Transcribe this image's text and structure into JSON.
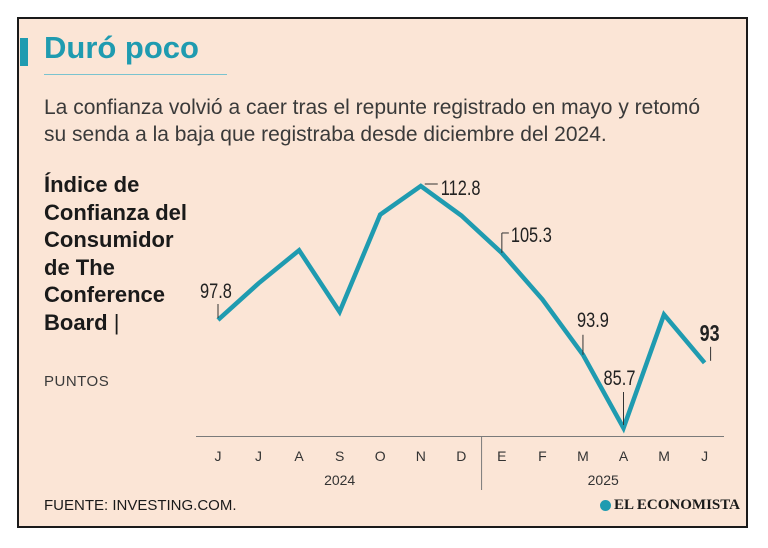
{
  "title": "Duró poco",
  "subtitle": "La confianza volvió a caer tras el repunte registrado en mayo y retomó su senda a la baja que registraba desde diciembre del 2024.",
  "index_title": "Índice de Confianza del Consumidor de The Conference Board",
  "index_separator": "|",
  "unit": "PUNTOS",
  "source": "FUENTE: INVESTING.COM.",
  "brand": "EL ECONOMISTA",
  "colors": {
    "accent": "#1f9bb0",
    "background": "#fbe5d6",
    "text": "#1a1a1a"
  },
  "chart_data": {
    "type": "line",
    "categories": [
      "J",
      "J",
      "A",
      "S",
      "O",
      "N",
      "D",
      "E",
      "F",
      "M",
      "A",
      "M",
      "J"
    ],
    "year_groups": [
      {
        "label": "2024",
        "start": 0,
        "end": 6
      },
      {
        "label": "2025",
        "start": 7,
        "end": 12
      }
    ],
    "values": [
      97.8,
      101.9,
      105.6,
      98.7,
      109.6,
      112.8,
      109.5,
      105.3,
      100.1,
      93.9,
      85.7,
      98.4,
      93
    ],
    "labeled_points": [
      {
        "index": 0,
        "text": "97.8",
        "bold": false
      },
      {
        "index": 5,
        "text": "112.8",
        "bold": false
      },
      {
        "index": 7,
        "text": "105.3",
        "bold": false
      },
      {
        "index": 9,
        "text": "93.9",
        "bold": false
      },
      {
        "index": 10,
        "text": "85.7",
        "bold": false
      },
      {
        "index": 12,
        "text": "93",
        "bold": true
      }
    ],
    "ylim": [
      85.7,
      112.8
    ],
    "grid": false
  }
}
